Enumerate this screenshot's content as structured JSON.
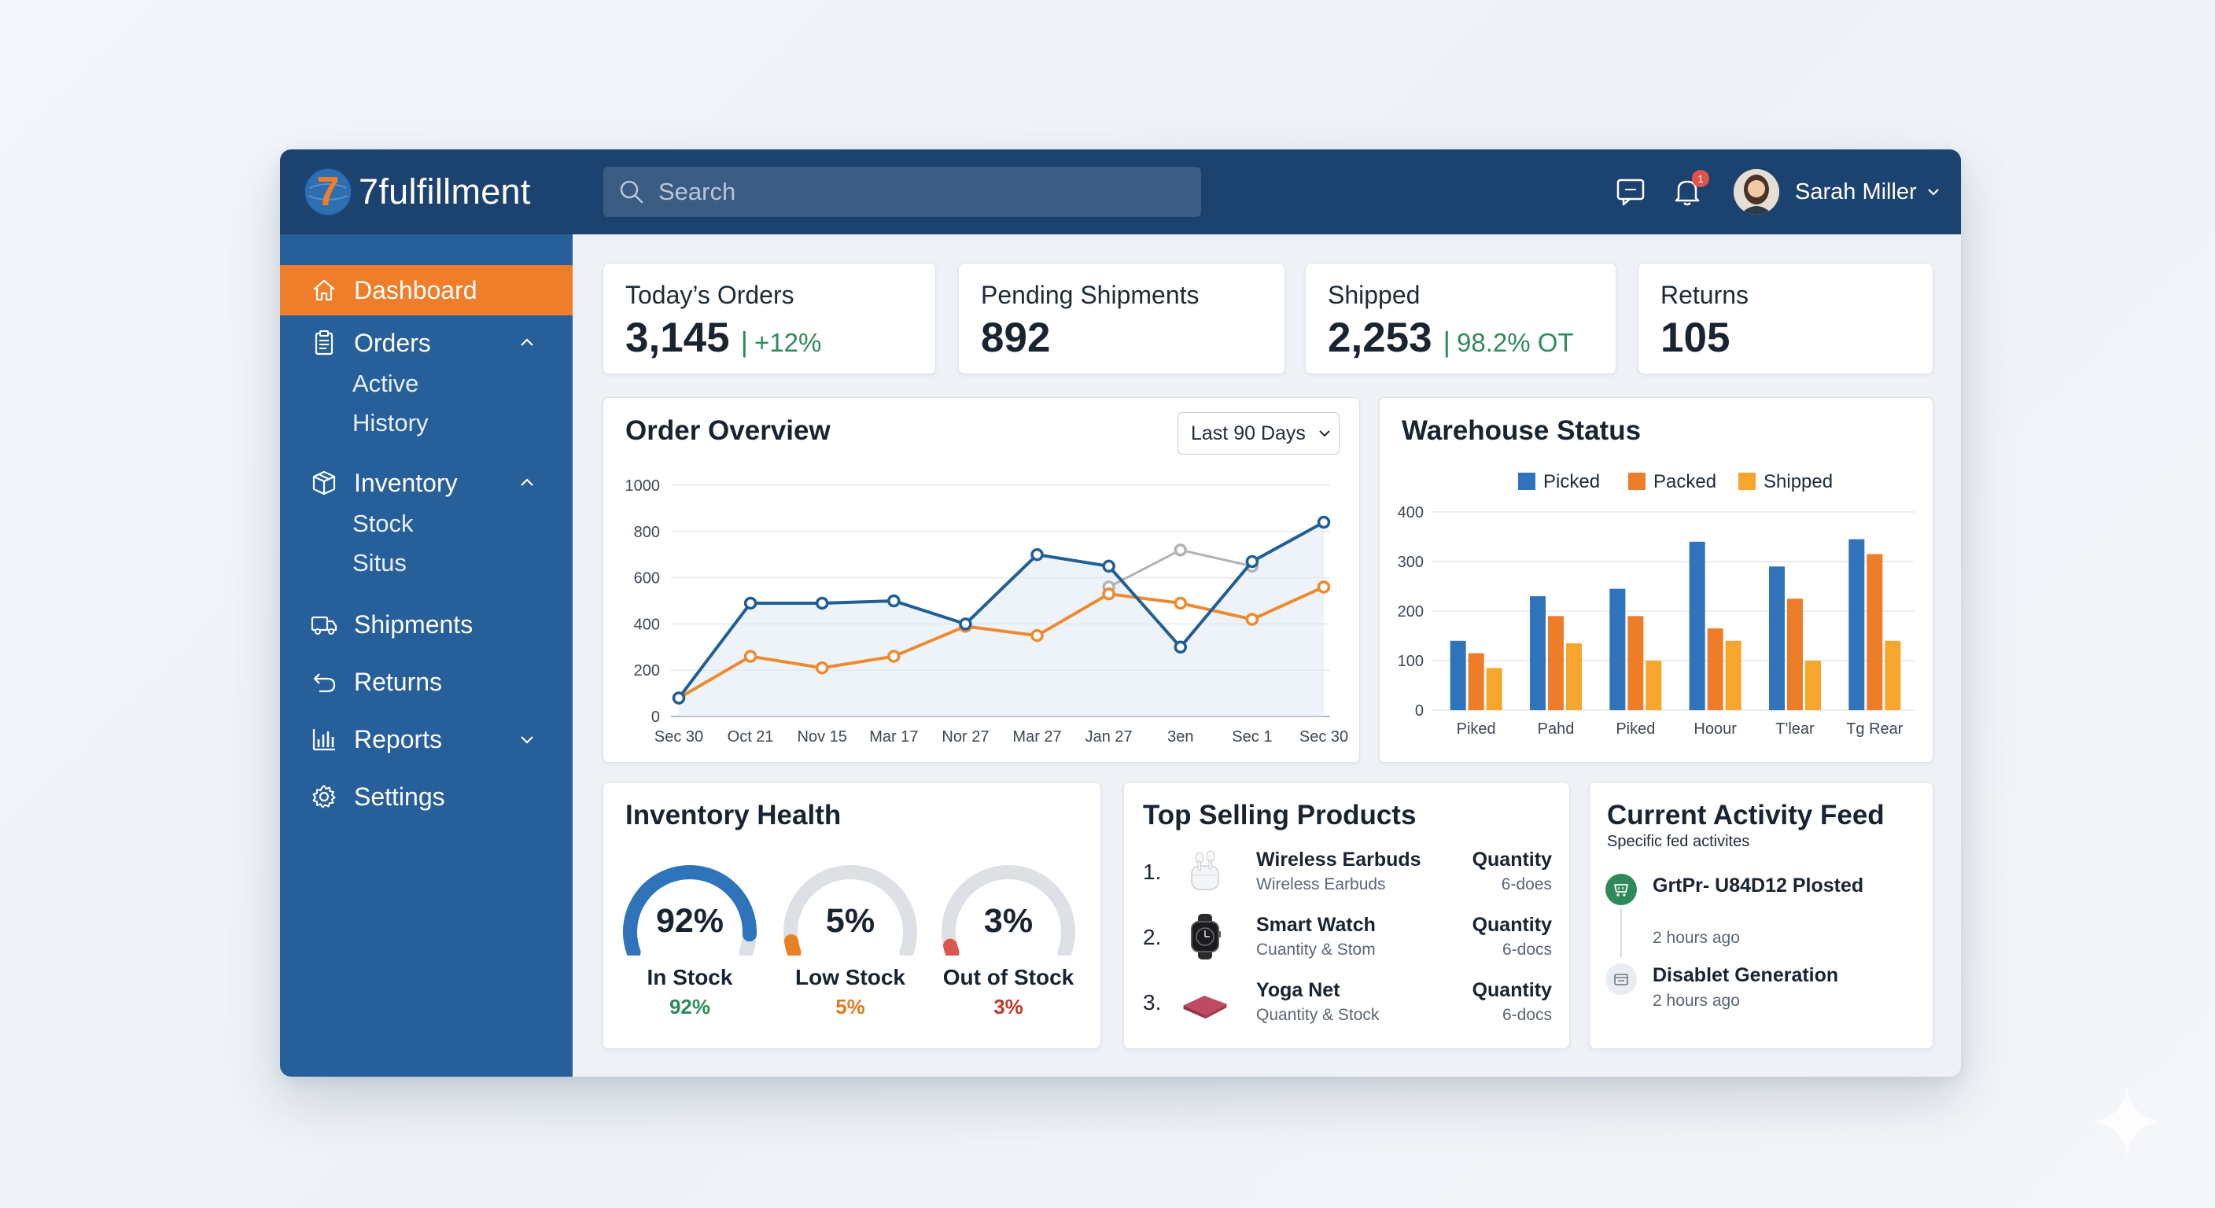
{
  "brand": {
    "name": "7fulfillment",
    "logo_glyph": "7"
  },
  "search": {
    "placeholder": "Search"
  },
  "header": {
    "user_name": "Sarah Miller",
    "notification_count": "1"
  },
  "sidebar": {
    "items": [
      {
        "label": "Dashboard",
        "icon": "home-icon",
        "active": true
      },
      {
        "label": "Orders",
        "icon": "clipboard-icon",
        "expanded": true,
        "children": [
          "Active",
          "History"
        ]
      },
      {
        "label": "Inventory",
        "icon": "box-icon",
        "expanded": true,
        "children": [
          "Stock",
          "Situs"
        ]
      },
      {
        "label": "Shipments",
        "icon": "truck-icon"
      },
      {
        "label": "Returns",
        "icon": "return-arrow-icon"
      },
      {
        "label": "Reports",
        "icon": "bar-chart-icon",
        "expanded": false
      },
      {
        "label": "Settings",
        "icon": "gear-icon"
      }
    ]
  },
  "stats": [
    {
      "label": "Today’s Orders",
      "value": "3,145",
      "sep": "|",
      "sub": "+12%"
    },
    {
      "label": "Pending Shipments",
      "value": "892"
    },
    {
      "label": "Shipped",
      "value": "2,253",
      "sep": "|",
      "sub": "98.2% OT"
    },
    {
      "label": "Returns",
      "value": "105"
    }
  ],
  "order_overview": {
    "title": "Order Overview",
    "range_label": "Last 90 Days"
  },
  "warehouse": {
    "title": "Warehouse Status"
  },
  "inventory_health": {
    "title": "Inventory Health",
    "gauges": [
      {
        "value": "92%",
        "label": "In Stock",
        "pct": "92%",
        "fraction": 0.92,
        "color": "#2f74bb",
        "pct_color": "#2f8a5b"
      },
      {
        "value": "5%",
        "label": "Low Stock",
        "pct": "5%",
        "fraction": 0.05,
        "color": "#e98128",
        "pct_color": "#e07a1f"
      },
      {
        "value": "3%",
        "label": "Out of Stock",
        "pct": "3%",
        "fraction": 0.03,
        "color": "#d9574f",
        "pct_color": "#c0392b"
      }
    ]
  },
  "top_products": {
    "title": "Top Selling Products",
    "items": [
      {
        "rank": "1.",
        "name": "Wireless Earbuds",
        "sub": "Wireless Earbuds",
        "qty_label": "Quantity",
        "qty": "6-does",
        "icon": "earbuds-icon"
      },
      {
        "rank": "2.",
        "name": "Smart Watch",
        "sub": "Cuantity & Stom",
        "qty_label": "Quantity",
        "qty": "6-docs",
        "icon": "smartwatch-icon"
      },
      {
        "rank": "3.",
        "name": "Yoga Net",
        "sub": "Quantity & Stock",
        "qty_label": "Quantity",
        "qty": "6-docs",
        "icon": "yoga-mat-icon"
      }
    ]
  },
  "activity": {
    "title": "Current Activity Feed",
    "subtitle": "Specific fed activites",
    "items": [
      {
        "title": "GrtPr- U84D12 Plosted",
        "time": "2 hours ago",
        "icon": "cart-icon",
        "color": "#2f8a5b"
      },
      {
        "title": "Disablet Generation",
        "time": "2 hours ago",
        "icon": "calendar-icon",
        "color": "#e9edf2"
      }
    ]
  },
  "chart_data": [
    {
      "type": "line",
      "title": "Order Overview",
      "categories": [
        "Sec 30",
        "Oct 21",
        "Nov 15",
        "Mar 17",
        "Nor 27",
        "Mar 27",
        "Jan 27",
        "3en",
        "Sec 1",
        "Sec 30"
      ],
      "ylim": [
        0,
        1000
      ],
      "yticks": [
        0,
        200,
        400,
        600,
        800,
        1000
      ],
      "grid": true,
      "series": [
        {
          "values": [
            80,
            490,
            490,
            500,
            400,
            700,
            650,
            300,
            670,
            840
          ],
          "color": "#1f5f96"
        },
        {
          "values": [
            80,
            260,
            210,
            260,
            390,
            350,
            530,
            490,
            420,
            560
          ],
          "color": "#ee8a2e"
        },
        {
          "values": [
            null,
            null,
            null,
            null,
            null,
            null,
            560,
            720,
            650,
            null
          ],
          "color": "#b0b4b9"
        }
      ]
    },
    {
      "type": "bar",
      "title": "Warehouse Status",
      "categories": [
        "Piked",
        "Pahd",
        "Piked",
        "Hoour",
        "T'lear",
        "Tg Rear"
      ],
      "ylim": [
        0,
        400
      ],
      "yticks": [
        0,
        100,
        200,
        300,
        400
      ],
      "grid": true,
      "legend": "top",
      "series": [
        {
          "name": "Picked",
          "values": [
            140,
            230,
            245,
            340,
            290,
            345
          ],
          "color": "#2f74bb"
        },
        {
          "name": "Packed",
          "values": [
            115,
            190,
            190,
            165,
            225,
            315
          ],
          "color": "#ee7d2a"
        },
        {
          "name": "Shipped",
          "values": [
            85,
            135,
            100,
            140,
            100,
            140
          ],
          "color": "#f6a52d"
        }
      ]
    }
  ]
}
